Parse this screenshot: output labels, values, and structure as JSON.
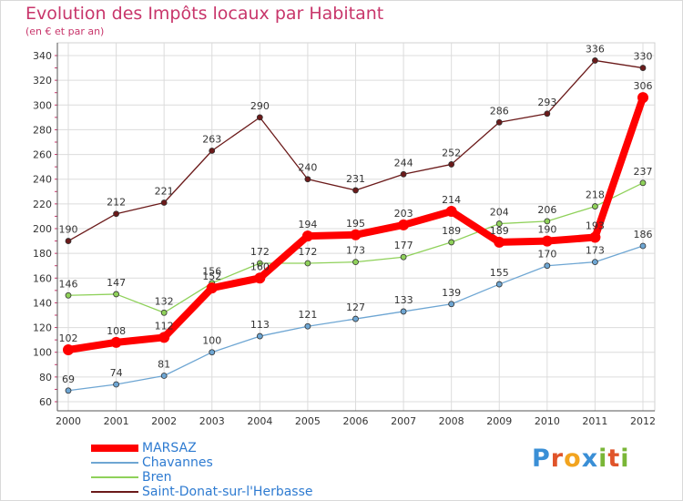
{
  "header": {
    "title": "Evolution des Impôts locaux par Habitant",
    "subtitle": "(en € et par an)"
  },
  "logo": {
    "letters": [
      "P",
      "r",
      "o",
      "x",
      "i",
      "t",
      "i"
    ]
  },
  "chart_data": {
    "type": "line",
    "x": [
      "2000",
      "2001",
      "2002",
      "2003",
      "2004",
      "2005",
      "2006",
      "2007",
      "2008",
      "2009",
      "2010",
      "2011",
      "2012"
    ],
    "ylim": [
      60,
      340
    ],
    "yticks": [
      60,
      80,
      100,
      120,
      140,
      160,
      180,
      200,
      220,
      240,
      260,
      280,
      300,
      320,
      340
    ],
    "grid": true,
    "legend_position": "bottom-left",
    "series": [
      {
        "name": "Saint-Donat-sur-l'Herbasse",
        "color": "#6b1a1a",
        "values": [
          190,
          212,
          221,
          263,
          290,
          240,
          231,
          244,
          252,
          286,
          293,
          336,
          330
        ]
      },
      {
        "name": "Bren",
        "color": "#8fd15a",
        "values": [
          146,
          147,
          132,
          156,
          172,
          172,
          173,
          177,
          189,
          204,
          206,
          218,
          237
        ]
      },
      {
        "name": "Chavannes",
        "color": "#6ea6d3",
        "values": [
          69,
          74,
          81,
          100,
          113,
          121,
          127,
          133,
          139,
          155,
          170,
          173,
          186
        ]
      },
      {
        "name": "MARSAZ",
        "color": "#ff0000",
        "values": [
          102,
          108,
          112,
          152,
          160,
          194,
          195,
          203,
          214,
          189,
          190,
          193,
          306
        ]
      }
    ],
    "legend_order": [
      "MARSAZ",
      "Chavannes",
      "Bren",
      "Saint-Donat-sur-l'Herbasse"
    ]
  }
}
